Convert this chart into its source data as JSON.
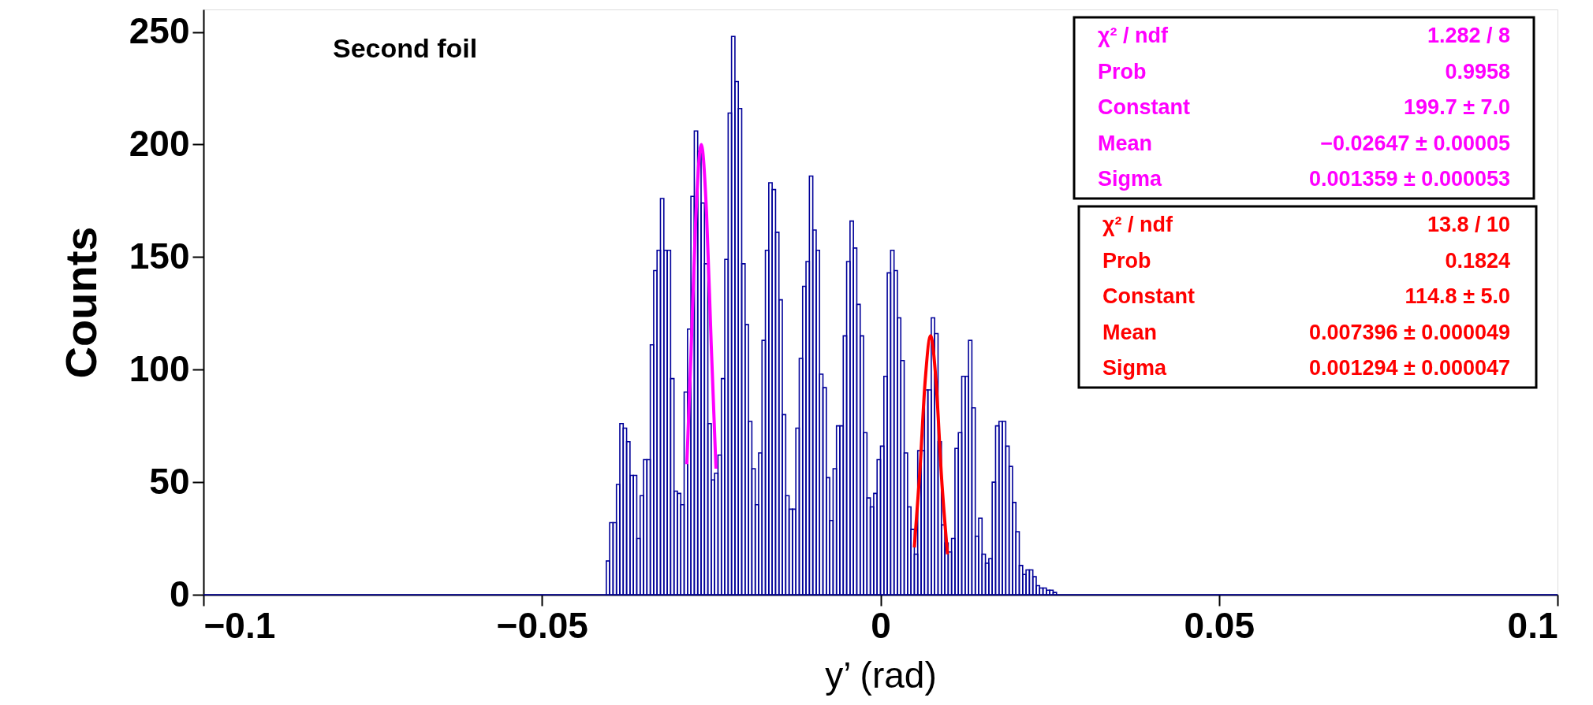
{
  "chart_data": {
    "type": "histogram",
    "xlabel": "y’ (rad)",
    "ylabel": "Counts",
    "xlim": [
      -0.1,
      0.1
    ],
    "ylim": [
      0,
      260
    ],
    "xticks": [
      -0.1,
      -0.05,
      0,
      0.05,
      0.1
    ],
    "yticks": [
      0,
      50,
      100,
      150,
      200,
      250
    ],
    "bins": [
      -0.1,
      -0.0405,
      -0.04,
      -0.0395,
      -0.039,
      -0.0385,
      -0.038,
      -0.0375,
      -0.037,
      -0.0365,
      -0.036,
      -0.0355,
      -0.035,
      -0.0345,
      -0.034,
      -0.0335,
      -0.033,
      -0.0325,
      -0.032,
      -0.0315,
      -0.031,
      -0.0305,
      -0.03,
      -0.0295,
      -0.029,
      -0.0285,
      -0.028,
      -0.0275,
      -0.027,
      -0.0265,
      -0.026,
      -0.0255,
      -0.025,
      -0.0245,
      -0.024,
      -0.0235,
      -0.023,
      -0.0225,
      -0.022,
      -0.0215,
      -0.021,
      -0.0205,
      -0.02,
      -0.0195,
      -0.019,
      -0.0185,
      -0.018,
      -0.0175,
      -0.017,
      -0.0165,
      -0.016,
      -0.0155,
      -0.015,
      -0.0145,
      -0.014,
      -0.0135,
      -0.013,
      -0.0125,
      -0.012,
      -0.0115,
      -0.011,
      -0.0105,
      -0.01,
      -0.0095,
      -0.009,
      -0.0085,
      -0.008,
      -0.0075,
      -0.007,
      -0.0065,
      -0.006,
      -0.0055,
      -0.005,
      -0.0045,
      -0.004,
      -0.0035,
      -0.003,
      -0.0025,
      -0.002,
      -0.0015,
      -0.001,
      -0.0005,
      0,
      0.0005,
      0.001,
      0.0015,
      0.002,
      0.0025,
      0.003,
      0.0035,
      0.004,
      0.0045,
      0.005,
      0.0055,
      0.006,
      0.0065,
      0.007,
      0.0075,
      0.008,
      0.0085,
      0.009,
      0.0095,
      0.01,
      0.0105,
      0.011,
      0.0115,
      0.012,
      0.0125,
      0.013,
      0.0135,
      0.014,
      0.0145,
      0.015,
      0.0155,
      0.016,
      0.0165,
      0.017,
      0.0175,
      0.018,
      0.0185,
      0.019,
      0.0195,
      0.02,
      0.0205,
      0.021,
      0.0215,
      0.022,
      0.0225,
      0.023,
      0.0235,
      0.024,
      0.0245,
      0.025,
      0.0255,
      0.026,
      0.1
    ],
    "series": [
      {
        "color": "#000099",
        "values": [
          0,
          15,
          32,
          32,
          49,
          76,
          74,
          68,
          53,
          53,
          25,
          44,
          60,
          60,
          111,
          144,
          153,
          176,
          153,
          153,
          96,
          46,
          45,
          40,
          90,
          118,
          177,
          206,
          197,
          174,
          147,
          76,
          51,
          54,
          62,
          96,
          149,
          214,
          248,
          228,
          216,
          147,
          120,
          77,
          56,
          40,
          63,
          113,
          153,
          183,
          180,
          161,
          131,
          80,
          44,
          38,
          38,
          74,
          105,
          137,
          148,
          186,
          162,
          153,
          98,
          92,
          52,
          33,
          56,
          75,
          75,
          115,
          148,
          166,
          154,
          129,
          115,
          72,
          43,
          39,
          45,
          60,
          66,
          97,
          143,
          153,
          144,
          123,
          104,
          63,
          39,
          29,
          18,
          64,
          64,
          91,
          91,
          123,
          116,
          68,
          31,
          23,
          19,
          25,
          65,
          72,
          97,
          97,
          113,
          83,
          26,
          34,
          18,
          14,
          16,
          50,
          75,
          77,
          77,
          66,
          57,
          41,
          28,
          13,
          9,
          11,
          11,
          8,
          4,
          3,
          3,
          2,
          2,
          1,
          0
        ]
      },
      {
        "type": "line",
        "color": "#ff00ff",
        "x": [
          -0.0286,
          -0.028,
          -0.0273,
          -0.02647,
          -0.0257,
          -0.025,
          -0.0243
        ],
        "values": [
          58,
          106,
          166,
          200,
          170,
          111,
          56
        ]
      },
      {
        "type": "line",
        "color": "#ff0000",
        "x": [
          0.005,
          0.0058,
          0.0066,
          0.007396,
          0.0082,
          0.009,
          0.0099
        ],
        "values": [
          21,
          54,
          95,
          115,
          95,
          53,
          18
        ]
      }
    ],
    "annotations": [
      "Second foil",
      "χ² / ndf",
      "1.282 / 8",
      "Prob",
      "0.9958",
      "Constant",
      "199.7 ± 7.0",
      "Mean",
      "−0.02647 ± 0.00005",
      "Sigma",
      "0.001359 ± 0.000053",
      "χ² / ndf",
      "13.8 / 10",
      "Prob",
      "0.1824",
      "Constant",
      "114.8 ± 5.0",
      "Mean",
      "0.007396 ± 0.000049",
      "Sigma",
      "0.001294 ± 0.000047"
    ]
  }
}
